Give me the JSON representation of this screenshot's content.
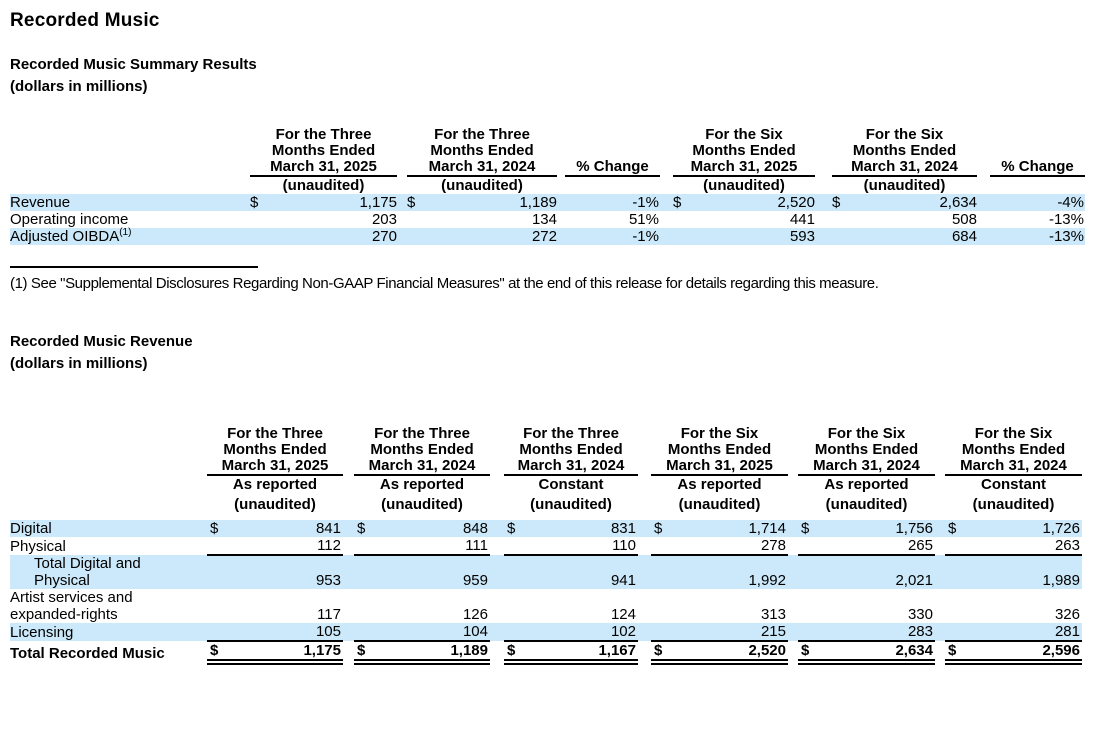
{
  "page": {
    "title": "Recorded Music"
  },
  "colors": {
    "row_highlight": "#cbe9fa",
    "rule": "#000000",
    "text": "#000000",
    "background": "#ffffff"
  },
  "summary_section": {
    "heading": "Recorded Music Summary Results",
    "subheading": "(dollars in millions)",
    "table": {
      "columns": [
        {
          "id": "three-months-2025",
          "type": "money",
          "header_lines": [
            "For the Three",
            "Months Ended",
            "March 31, 2025"
          ],
          "sub": "(unaudited)"
        },
        {
          "id": "three-months-2024",
          "type": "money",
          "header_lines": [
            "For the Three",
            "Months Ended",
            "March 31, 2024"
          ],
          "sub": "(unaudited)"
        },
        {
          "id": "pct-change-three-months",
          "type": "pct",
          "header_lines": [
            "% Change"
          ]
        },
        {
          "id": "six-months-2025",
          "type": "money",
          "header_lines": [
            "For the Six",
            "Months Ended",
            "March 31, 2025"
          ],
          "sub": "(unaudited)"
        },
        {
          "id": "six-months-2024",
          "type": "money",
          "header_lines": [
            "For the Six",
            "Months Ended",
            "March 31, 2024"
          ],
          "sub": "(unaudited)"
        },
        {
          "id": "pct-change-six-months",
          "type": "pct",
          "header_lines": [
            "% Change"
          ]
        }
      ],
      "rows": [
        {
          "name": "revenue",
          "label": "Revenue",
          "shaded": true,
          "cells": [
            {
              "d": "$",
              "v": "1,175"
            },
            {
              "d": "$",
              "v": "1,189"
            },
            {
              "v": "-1%"
            },
            {
              "d": "$",
              "v": "2,520"
            },
            {
              "d": "$",
              "v": "2,634"
            },
            {
              "v": "-4%"
            }
          ]
        },
        {
          "name": "operating-income",
          "label": "Operating income",
          "shaded": false,
          "cells": [
            {
              "v": "203"
            },
            {
              "v": "134"
            },
            {
              "v": "51%"
            },
            {
              "v": "441"
            },
            {
              "v": "508"
            },
            {
              "v": "-13%"
            }
          ]
        },
        {
          "name": "adjusted-oibda",
          "label": "Adjusted OIBDA",
          "sup": "(1)",
          "shaded": true,
          "cells": [
            {
              "v": "270"
            },
            {
              "v": "272"
            },
            {
              "v": "-1%"
            },
            {
              "v": "593"
            },
            {
              "v": "684"
            },
            {
              "v": "-13%"
            }
          ]
        }
      ]
    }
  },
  "footnote": {
    "text": "(1) See \"Supplemental Disclosures Regarding Non-GAAP Financial Measures\" at the end of this release for details regarding this measure."
  },
  "revenue_section": {
    "heading": "Recorded Music Revenue",
    "subheading": "(dollars in millions)",
    "table": {
      "columns": [
        {
          "id": "three-months-2025-reported",
          "type": "money",
          "header_lines": [
            "For the Three",
            "Months Ended",
            "March 31, 2025"
          ],
          "basis": "As reported",
          "sub": "(unaudited)"
        },
        {
          "id": "three-months-2024-reported",
          "type": "money",
          "header_lines": [
            "For the Three",
            "Months Ended",
            "March 31, 2024"
          ],
          "basis": "As reported",
          "sub": "(unaudited)"
        },
        {
          "id": "three-months-2024-constant",
          "type": "money",
          "header_lines": [
            "For the Three",
            "Months Ended",
            "March 31, 2024"
          ],
          "basis": "Constant",
          "sub": "(unaudited)"
        },
        {
          "id": "six-months-2025-reported",
          "type": "money",
          "header_lines": [
            "For the Six",
            "Months Ended",
            "March 31, 2025"
          ],
          "basis": "As reported",
          "sub": "(unaudited)"
        },
        {
          "id": "six-months-2024-reported",
          "type": "money",
          "header_lines": [
            "For the Six",
            "Months Ended",
            "March 31, 2024"
          ],
          "basis": "As reported",
          "sub": "(unaudited)"
        },
        {
          "id": "six-months-2024-constant",
          "type": "money",
          "header_lines": [
            "For the Six",
            "Months Ended",
            "March 31, 2024"
          ],
          "basis": "Constant",
          "sub": "(unaudited)"
        }
      ],
      "rows": [
        {
          "name": "digital",
          "label": "Digital",
          "shaded": true,
          "cells": [
            {
              "d": "$",
              "v": "841"
            },
            {
              "d": "$",
              "v": "848"
            },
            {
              "d": "$",
              "v": "831"
            },
            {
              "d": "$",
              "v": "1,714"
            },
            {
              "d": "$",
              "v": "1,756"
            },
            {
              "d": "$",
              "v": "1,726"
            }
          ]
        },
        {
          "name": "physical",
          "label": "Physical",
          "shaded": false,
          "rule_below": true,
          "cells": [
            {
              "v": "112"
            },
            {
              "v": "111"
            },
            {
              "v": "110"
            },
            {
              "v": "278"
            },
            {
              "v": "265"
            },
            {
              "v": "263"
            }
          ]
        },
        {
          "name": "total-digital-and-physical",
          "label_lines": [
            "Total Digital and",
            "Physical"
          ],
          "indent": true,
          "shaded": true,
          "cells": [
            {
              "v": "953"
            },
            {
              "v": "959"
            },
            {
              "v": "941"
            },
            {
              "v": "1,992"
            },
            {
              "v": "2,021"
            },
            {
              "v": "1,989"
            }
          ]
        },
        {
          "name": "artist-services-and-expanded-rights",
          "label_lines": [
            "Artist services and",
            "expanded-rights"
          ],
          "shaded": false,
          "cells": [
            {
              "v": "117"
            },
            {
              "v": "126"
            },
            {
              "v": "124"
            },
            {
              "v": "313"
            },
            {
              "v": "330"
            },
            {
              "v": "326"
            }
          ]
        },
        {
          "name": "licensing",
          "label": "Licensing",
          "shaded": true,
          "rule_below": true,
          "cells": [
            {
              "v": "105"
            },
            {
              "v": "104"
            },
            {
              "v": "102"
            },
            {
              "v": "215"
            },
            {
              "v": "283"
            },
            {
              "v": "281"
            }
          ]
        },
        {
          "name": "total-recorded-music",
          "label": "Total Recorded Music",
          "bold": true,
          "shaded": false,
          "double_rule_below": true,
          "cells": [
            {
              "d": "$",
              "v": "1,175"
            },
            {
              "d": "$",
              "v": "1,189"
            },
            {
              "d": "$",
              "v": "1,167"
            },
            {
              "d": "$",
              "v": "2,520"
            },
            {
              "d": "$",
              "v": "2,634"
            },
            {
              "d": "$",
              "v": "2,596"
            }
          ]
        }
      ]
    }
  }
}
